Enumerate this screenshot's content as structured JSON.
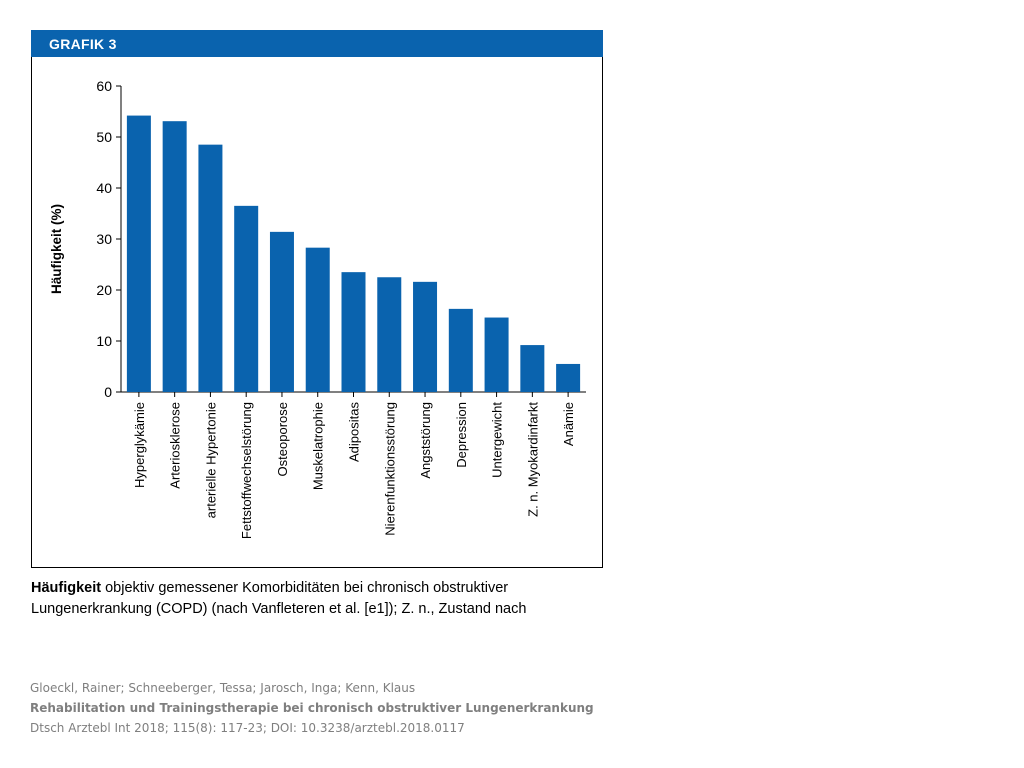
{
  "banner": {
    "label": "GRAFIK 3"
  },
  "chart_data": {
    "type": "bar",
    "ylabel": "Häufigkeit (%)",
    "xlabel": "",
    "ylim": [
      0,
      60
    ],
    "yticks": [
      0,
      10,
      20,
      30,
      40,
      50,
      60
    ],
    "categories": [
      "Hyperglykämie",
      "Arteriosklerose",
      "arterielle Hypertonie",
      "Fettstoffwechselstörung",
      "Osteoporose",
      "Muskelatrophie",
      "Adipositas",
      "Nierenfunktionsstörung",
      "Angststörung",
      "Depression",
      "Untergewicht",
      "Z. n. Myokardinfarkt",
      "Anämie"
    ],
    "values": [
      54.2,
      53.1,
      48.5,
      36.5,
      31.4,
      28.3,
      23.5,
      22.5,
      21.6,
      16.3,
      14.6,
      9.2,
      5.5
    ],
    "bar_color": "#0a63ae",
    "grid": false
  },
  "caption": {
    "lead": "Häufigkeit",
    "text": " objektiv gemessener Komorbiditäten bei chronisch obstruktiver Lungenerkrankung (COPD) (nach Vanfleteren et al. [e1]); Z. n., Zustand nach"
  },
  "citation": {
    "authors": "Gloeckl, Rainer; Schneeberger, Tessa; Jarosch, Inga; Kenn, Klaus",
    "title": "Rehabilitation und Trainingstherapie bei chronisch obstruktiver Lungenerkrankung",
    "source": "Dtsch Arztebl Int 2018; 115(8): 117-23; DOI: 10.3238/arztebl.2018.0117"
  }
}
